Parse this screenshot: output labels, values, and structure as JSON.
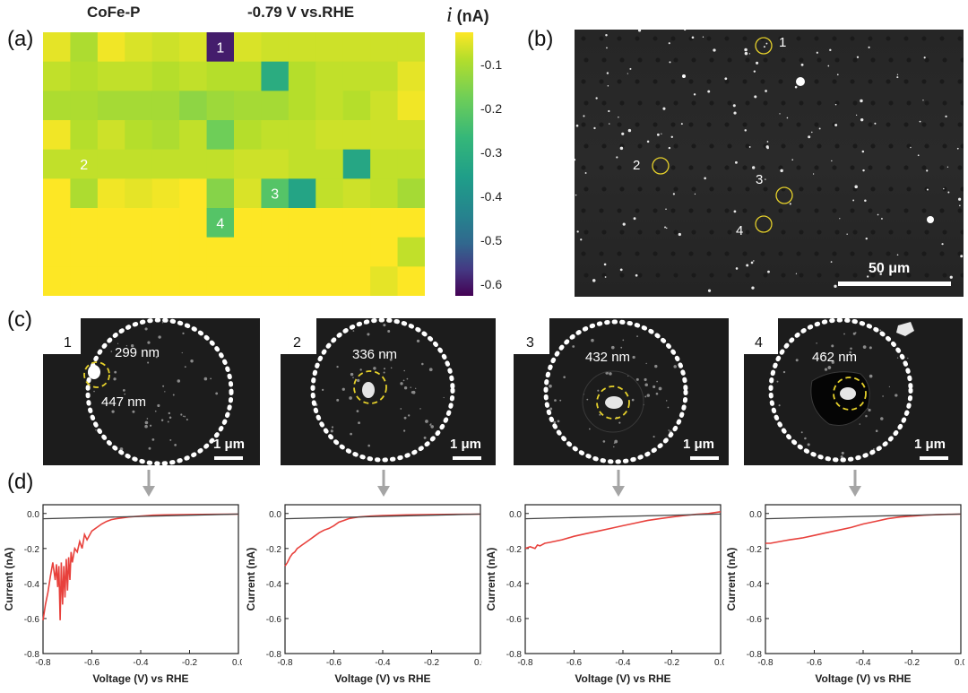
{
  "panel_labels": {
    "a": "(a)",
    "b": "(b)",
    "c": "(c)",
    "d": "(d)"
  },
  "heatmap": {
    "left_title": "CoFe-P",
    "right_title": "-0.79 V vs.RHE",
    "colorbar_title_symbol": "i",
    "colorbar_title_unit": " (nA)",
    "colorbar_ticks": [
      "-0.1",
      "-0.2",
      "-0.3",
      "-0.4",
      "-0.5",
      "-0.6"
    ],
    "colorbar_range": [
      -0.63,
      -0.03
    ],
    "grid_values": [
      [
        -0.05,
        -0.1,
        -0.04,
        -0.06,
        -0.07,
        -0.06,
        -0.6,
        -0.06,
        -0.07,
        -0.07,
        -0.07,
        -0.07,
        -0.07,
        -0.07
      ],
      [
        -0.08,
        -0.09,
        -0.08,
        -0.08,
        -0.09,
        -0.08,
        -0.09,
        -0.09,
        -0.31,
        -0.09,
        -0.08,
        -0.08,
        -0.08,
        -0.05
      ],
      [
        -0.1,
        -0.1,
        -0.11,
        -0.11,
        -0.11,
        -0.14,
        -0.12,
        -0.11,
        -0.11,
        -0.09,
        -0.08,
        -0.09,
        -0.07,
        -0.04
      ],
      [
        -0.04,
        -0.09,
        -0.07,
        -0.09,
        -0.1,
        -0.08,
        -0.18,
        -0.09,
        -0.08,
        -0.08,
        -0.07,
        -0.07,
        -0.07,
        -0.07
      ],
      [
        -0.08,
        -0.08,
        -0.08,
        -0.08,
        -0.08,
        -0.08,
        -0.08,
        -0.07,
        -0.07,
        -0.08,
        -0.08,
        -0.33,
        -0.08,
        -0.08
      ],
      [
        -0.03,
        -0.1,
        -0.04,
        -0.05,
        -0.04,
        -0.03,
        -0.15,
        -0.06,
        -0.22,
        -0.34,
        -0.08,
        -0.07,
        -0.08,
        -0.11
      ],
      [
        -0.03,
        -0.03,
        -0.03,
        -0.03,
        -0.03,
        -0.03,
        -0.22,
        -0.03,
        -0.03,
        -0.03,
        -0.03,
        -0.03,
        -0.03,
        -0.03
      ],
      [
        -0.03,
        -0.03,
        -0.03,
        -0.03,
        -0.03,
        -0.03,
        -0.03,
        -0.03,
        -0.03,
        -0.03,
        -0.03,
        -0.03,
        -0.03,
        -0.08
      ],
      [
        -0.03,
        -0.03,
        -0.03,
        -0.03,
        -0.03,
        -0.03,
        -0.03,
        -0.03,
        -0.03,
        -0.03,
        -0.03,
        -0.03,
        -0.05,
        -0.03
      ]
    ],
    "markers": [
      {
        "label": "1",
        "row": 0,
        "col": 6
      },
      {
        "label": "2",
        "row": 4,
        "col": 1
      },
      {
        "label": "3",
        "row": 5,
        "col": 8
      },
      {
        "label": "4",
        "row": 6,
        "col": 6
      }
    ]
  },
  "sem_overview": {
    "scale_bar_label": "50 μm",
    "markers": [
      "1",
      "2",
      "3",
      "4"
    ]
  },
  "sem_zoom": [
    {
      "label": "1",
      "inner_size": "299 nm",
      "outer_size": "447 nm",
      "scale": "1 μm"
    },
    {
      "label": "2",
      "inner_size": "336 nm",
      "scale": "1 μm"
    },
    {
      "label": "3",
      "inner_size": "432 nm",
      "scale": "1 μm"
    },
    {
      "label": "4",
      "inner_size": "462 nm",
      "scale": "1 μm"
    }
  ],
  "chart_data": [
    {
      "type": "line",
      "xlabel": "Voltage (V) vs RHE",
      "ylabel": "Current (nA)",
      "xlim": [
        -0.8,
        0.0
      ],
      "ylim": [
        -0.8,
        0.05
      ],
      "xticks": [
        "-0.8",
        "-0.6",
        "-0.4",
        "-0.2",
        "0.0"
      ],
      "yticks": [
        "0.0",
        "-0.2",
        "-0.4",
        "-0.6",
        "-0.8"
      ],
      "series": [
        {
          "color": "#e8413c",
          "x": [
            -0.8,
            -0.79,
            -0.78,
            -0.77,
            -0.76,
            -0.75,
            -0.745,
            -0.74,
            -0.735,
            -0.73,
            -0.725,
            -0.72,
            -0.715,
            -0.71,
            -0.705,
            -0.7,
            -0.695,
            -0.69,
            -0.685,
            -0.68,
            -0.67,
            -0.66,
            -0.65,
            -0.64,
            -0.63,
            -0.62,
            -0.6,
            -0.58,
            -0.56,
            -0.54,
            -0.52,
            -0.5,
            -0.45,
            -0.4,
            -0.35,
            -0.3,
            -0.2,
            -0.1,
            0.0
          ],
          "y": [
            -0.61,
            -0.52,
            -0.45,
            -0.36,
            -0.28,
            -0.38,
            -0.29,
            -0.42,
            -0.3,
            -0.61,
            -0.28,
            -0.52,
            -0.3,
            -0.48,
            -0.26,
            -0.44,
            -0.25,
            -0.38,
            -0.22,
            -0.28,
            -0.2,
            -0.22,
            -0.16,
            -0.2,
            -0.12,
            -0.15,
            -0.1,
            -0.08,
            -0.06,
            -0.045,
            -0.035,
            -0.03,
            -0.02,
            -0.015,
            -0.01,
            -0.008,
            -0.006,
            -0.005,
            -0.004
          ]
        },
        {
          "color": "#444444",
          "x": [
            -0.8,
            0.0
          ],
          "y": [
            -0.03,
            -0.003
          ]
        }
      ]
    },
    {
      "type": "line",
      "xlabel": "Voltage (V) vs RHE",
      "ylabel": "Current (nA)",
      "xlim": [
        -0.8,
        0.0
      ],
      "ylim": [
        -0.8,
        0.05
      ],
      "xticks": [
        "-0.8",
        "-0.6",
        "-0.4",
        "-0.2",
        "0.0"
      ],
      "yticks": [
        "0.0",
        "-0.2",
        "-0.4",
        "-0.6",
        "-0.8"
      ],
      "series": [
        {
          "color": "#e8413c",
          "x": [
            -0.8,
            -0.79,
            -0.78,
            -0.77,
            -0.76,
            -0.75,
            -0.74,
            -0.73,
            -0.72,
            -0.7,
            -0.68,
            -0.66,
            -0.64,
            -0.62,
            -0.6,
            -0.58,
            -0.56,
            -0.54,
            -0.52,
            -0.5,
            -0.45,
            -0.4,
            -0.35,
            -0.3,
            -0.2,
            -0.1,
            0.0
          ],
          "y": [
            -0.3,
            -0.28,
            -0.25,
            -0.23,
            -0.22,
            -0.2,
            -0.19,
            -0.18,
            -0.17,
            -0.15,
            -0.13,
            -0.11,
            -0.095,
            -0.085,
            -0.07,
            -0.05,
            -0.04,
            -0.03,
            -0.025,
            -0.02,
            -0.015,
            -0.012,
            -0.01,
            -0.008,
            -0.006,
            -0.005,
            -0.004
          ]
        },
        {
          "color": "#444444",
          "x": [
            -0.8,
            0.0
          ],
          "y": [
            -0.03,
            -0.003
          ]
        }
      ]
    },
    {
      "type": "line",
      "xlabel": "Voltage (V) vs RHE",
      "ylabel": "Current (nA)",
      "xlim": [
        -0.8,
        0.0
      ],
      "ylim": [
        -0.8,
        0.05
      ],
      "xticks": [
        "-0.8",
        "-0.6",
        "-0.4",
        "-0.2",
        "0.0"
      ],
      "yticks": [
        "0.0",
        "-0.2",
        "-0.4",
        "-0.6",
        "-0.8"
      ],
      "series": [
        {
          "color": "#e8413c",
          "x": [
            -0.8,
            -0.78,
            -0.76,
            -0.75,
            -0.74,
            -0.72,
            -0.7,
            -0.65,
            -0.6,
            -0.55,
            -0.5,
            -0.45,
            -0.4,
            -0.35,
            -0.3,
            -0.25,
            -0.2,
            -0.15,
            -0.1,
            -0.05,
            0.0
          ],
          "y": [
            -0.2,
            -0.19,
            -0.2,
            -0.18,
            -0.185,
            -0.17,
            -0.165,
            -0.15,
            -0.13,
            -0.115,
            -0.1,
            -0.085,
            -0.07,
            -0.055,
            -0.04,
            -0.03,
            -0.02,
            -0.012,
            -0.005,
            0.0,
            0.01
          ]
        },
        {
          "color": "#444444",
          "x": [
            -0.8,
            0.0
          ],
          "y": [
            -0.03,
            -0.003
          ]
        }
      ]
    },
    {
      "type": "line",
      "xlabel": "Voltage (V) vs RHE",
      "ylabel": "Current (nA)",
      "xlim": [
        -0.8,
        0.0
      ],
      "ylim": [
        -0.8,
        0.05
      ],
      "xticks": [
        "-0.8",
        "-0.6",
        "-0.4",
        "-0.2",
        "0.0"
      ],
      "yticks": [
        "0.0",
        "-0.2",
        "-0.4",
        "-0.6",
        "-0.8"
      ],
      "series": [
        {
          "color": "#e8413c",
          "x": [
            -0.8,
            -0.78,
            -0.76,
            -0.74,
            -0.72,
            -0.7,
            -0.65,
            -0.6,
            -0.55,
            -0.5,
            -0.45,
            -0.4,
            -0.35,
            -0.3,
            -0.25,
            -0.2,
            -0.15,
            -0.1,
            -0.05,
            0.0
          ],
          "y": [
            -0.17,
            -0.17,
            -0.165,
            -0.16,
            -0.155,
            -0.15,
            -0.14,
            -0.125,
            -0.11,
            -0.095,
            -0.08,
            -0.06,
            -0.045,
            -0.03,
            -0.02,
            -0.015,
            -0.01,
            -0.007,
            -0.005,
            -0.004
          ]
        },
        {
          "color": "#444444",
          "x": [
            -0.8,
            0.0
          ],
          "y": [
            -0.03,
            -0.003
          ]
        }
      ]
    }
  ]
}
